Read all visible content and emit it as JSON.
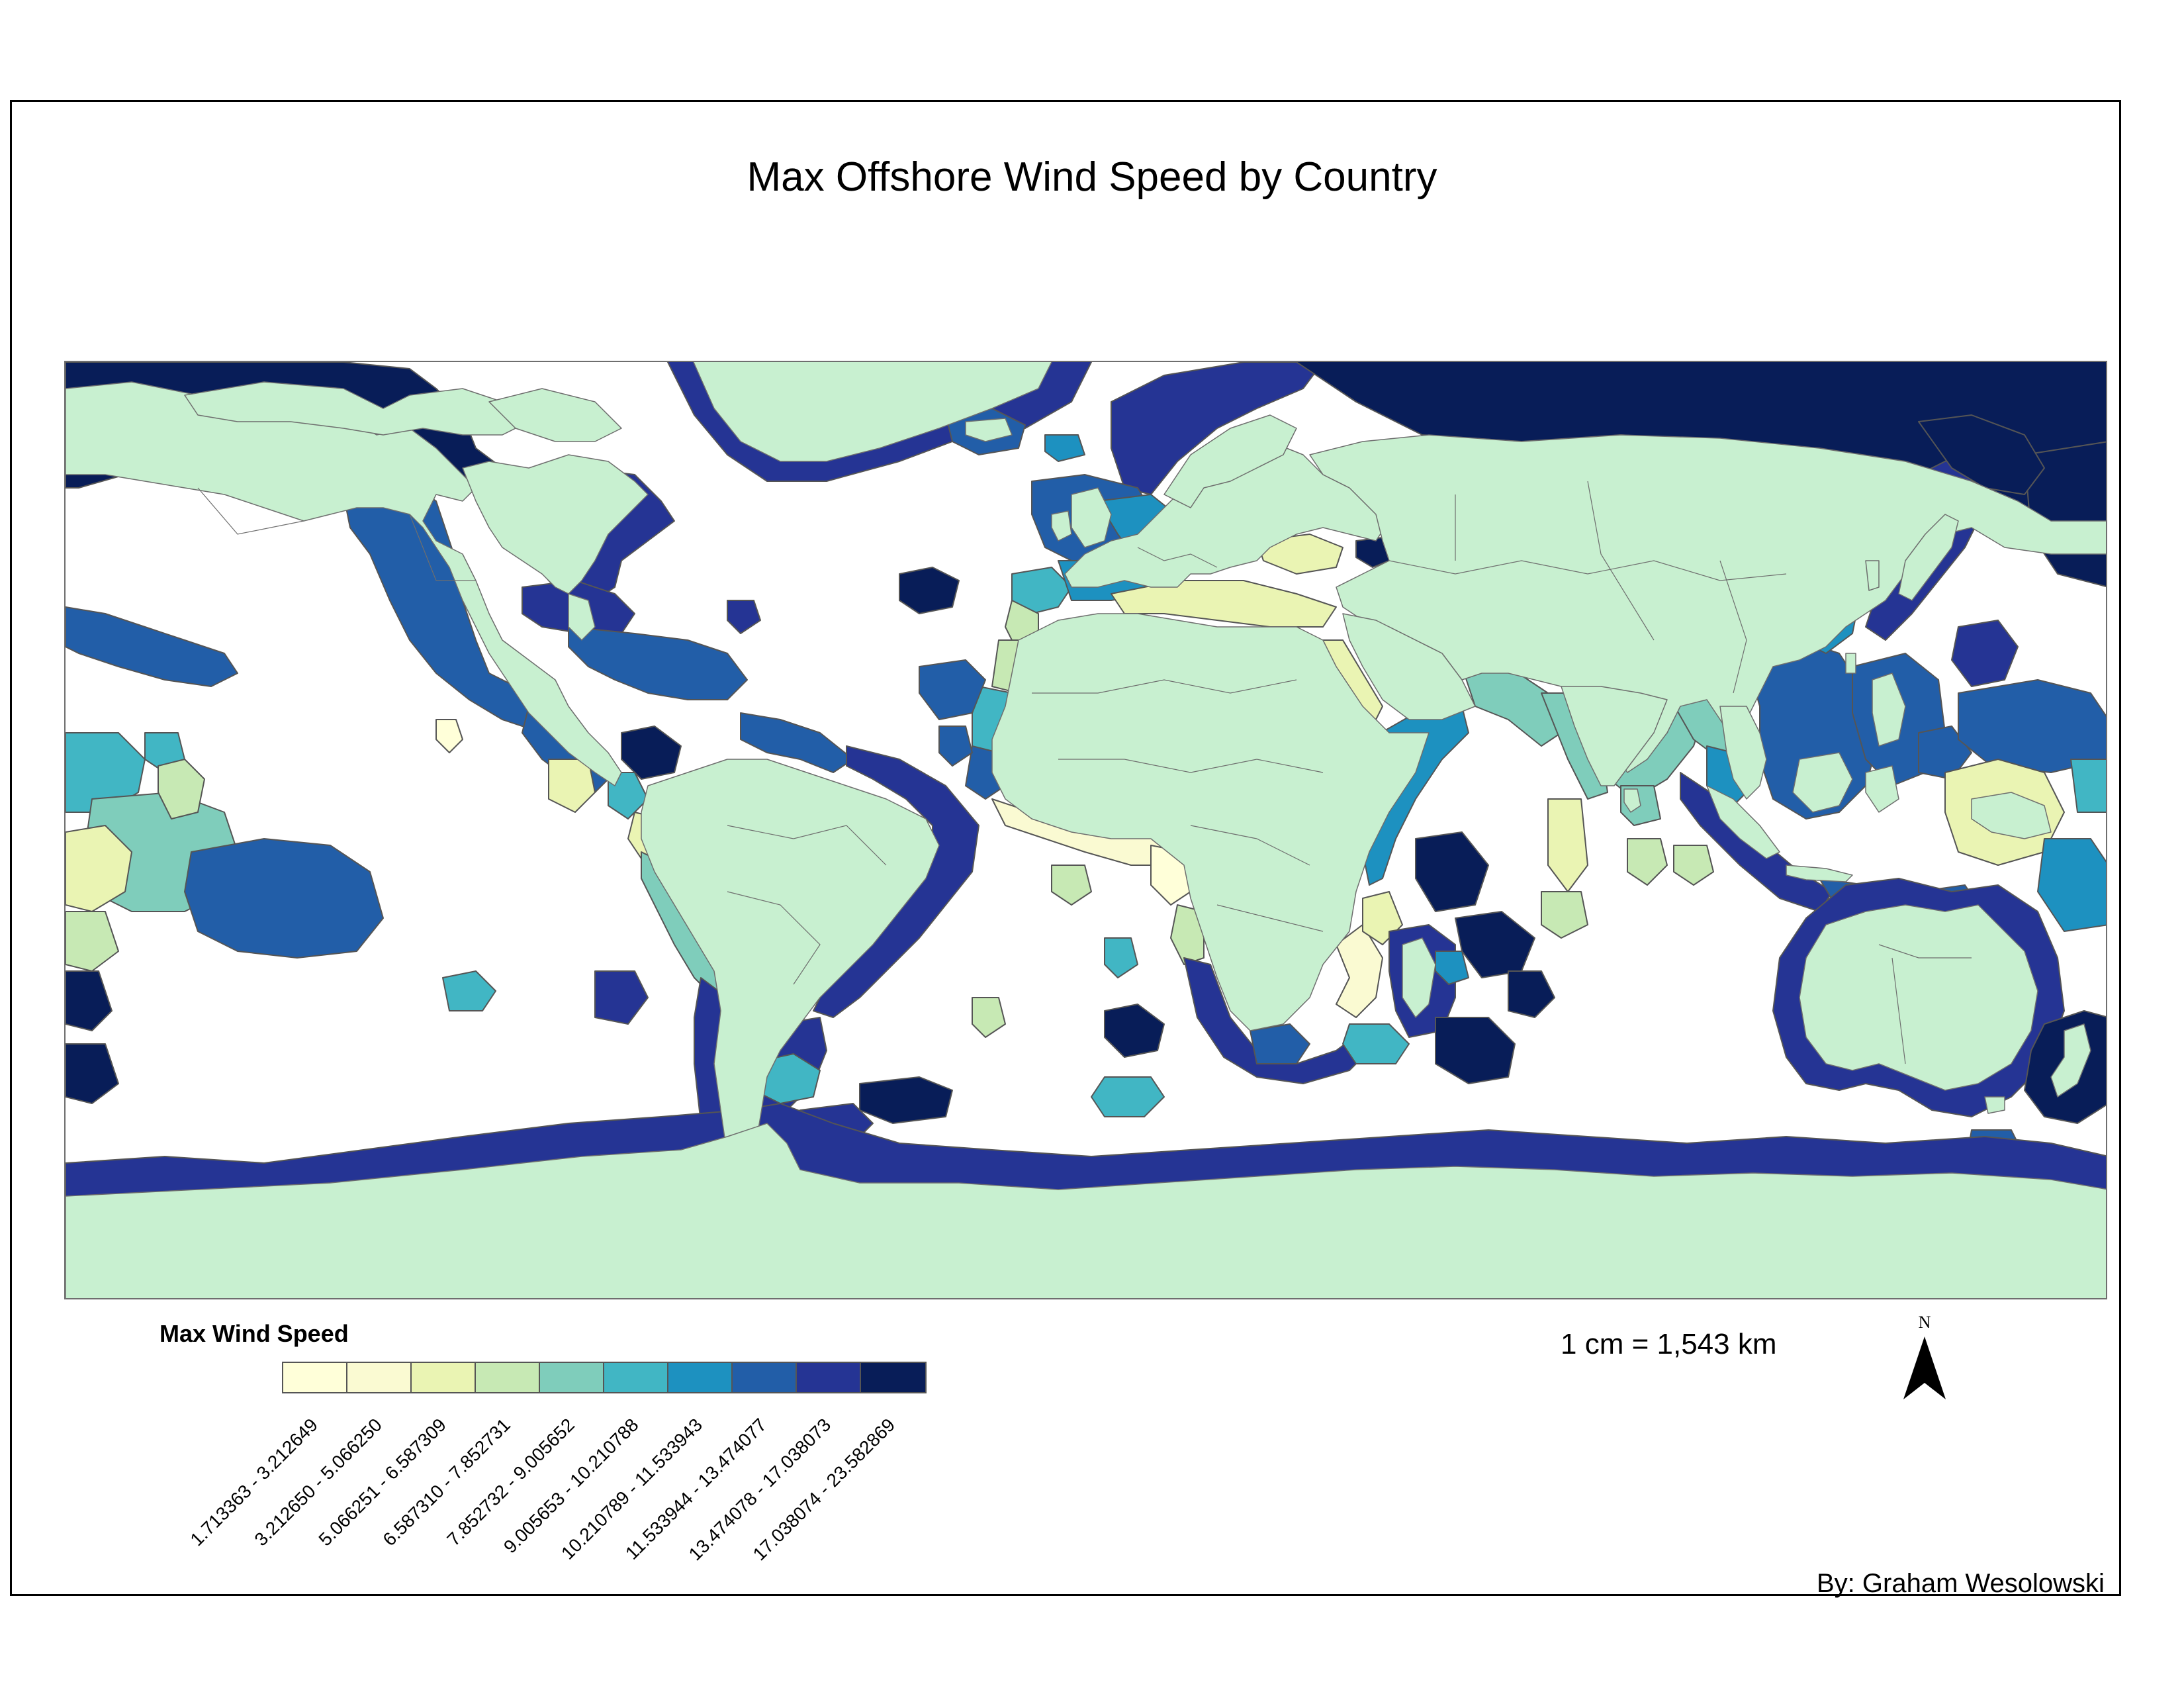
{
  "title": "Max Offshore Wind Speed by Country",
  "legend": {
    "title": "Max Wind Speed",
    "classes": [
      {
        "label": "1.713363 - 3.212649",
        "color": "#ffffd9"
      },
      {
        "label": "3.212650 - 5.066250",
        "color": "#fafad2"
      },
      {
        "label": "5.066251 - 6.587309",
        "color": "#eaf4b3"
      },
      {
        "label": "6.587310 - 7.852731",
        "color": "#c7e9b4"
      },
      {
        "label": "7.852732 - 9.005652",
        "color": "#7fcdbb"
      },
      {
        "label": "9.005653 - 10.210788",
        "color": "#41b6c4"
      },
      {
        "label": "10.210789 - 11.533943",
        "color": "#1d91c0"
      },
      {
        "label": "11.533944 - 13.474077",
        "color": "#225ea8"
      },
      {
        "label": "13.474078 - 17.038073",
        "color": "#253494"
      },
      {
        "label": "17.038074 - 23.582869",
        "color": "#081d58"
      }
    ]
  },
  "scale_bar": "1 cm = 1,543 km",
  "north_arrow": "N",
  "credit": "By: Graham Wesolowski",
  "colors": {
    "land": "#c8f0d0",
    "ocean": "#ffffff",
    "borders": "#6e6e6e"
  }
}
